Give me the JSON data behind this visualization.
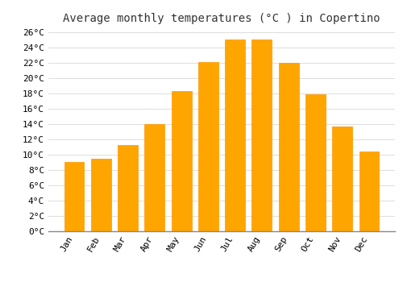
{
  "title": "Average monthly temperatures (°C ) in Copertino",
  "months": [
    "Jan",
    "Feb",
    "Mar",
    "Apr",
    "May",
    "Jun",
    "Jul",
    "Aug",
    "Sep",
    "Oct",
    "Nov",
    "Dec"
  ],
  "temperatures": [
    9.0,
    9.5,
    11.3,
    14.0,
    18.3,
    22.1,
    25.0,
    25.0,
    22.0,
    17.9,
    13.7,
    10.4
  ],
  "bar_color": "#FFA500",
  "bar_edge_color": "#FF9500",
  "background_color": "#FFFFFF",
  "plot_bg_color": "#FFFFFF",
  "grid_color": "#DDDDDD",
  "ylim": [
    0,
    26.5
  ],
  "yticks": [
    0,
    2,
    4,
    6,
    8,
    10,
    12,
    14,
    16,
    18,
    20,
    22,
    24,
    26
  ],
  "title_fontsize": 10,
  "tick_fontsize": 8,
  "bar_width": 0.75
}
